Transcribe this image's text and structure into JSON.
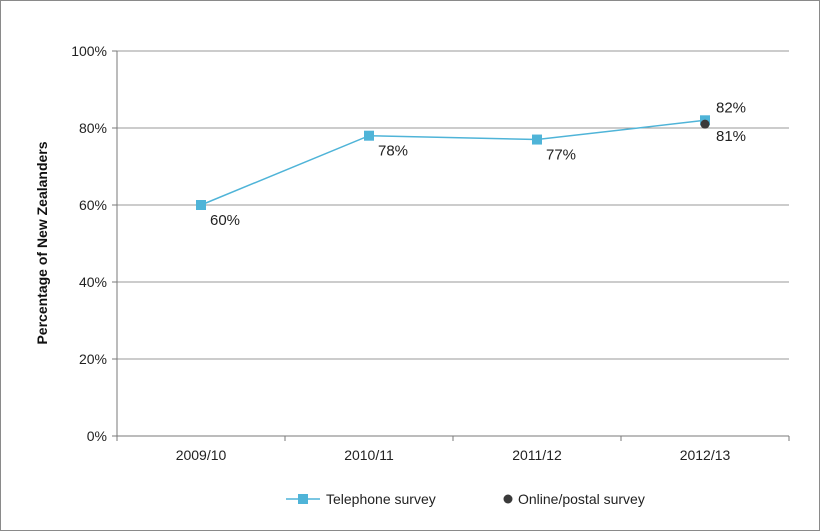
{
  "chart_data": {
    "type": "line",
    "title": "",
    "xlabel": "",
    "ylabel": "Percentage of New Zealanders",
    "categories": [
      "2009/10",
      "2010/11",
      "2011/12",
      "2012/13"
    ],
    "ylim": [
      0,
      100
    ],
    "yticks": [
      "0%",
      "20%",
      "40%",
      "60%",
      "80%",
      "100%"
    ],
    "grid": true,
    "legend_position": "bottom",
    "series": [
      {
        "name": "Telephone survey",
        "values": [
          60,
          78,
          77,
          82
        ],
        "labels": [
          "60%",
          "78%",
          "77%",
          "82%"
        ],
        "color": "#4fb4d8",
        "marker": "square"
      },
      {
        "name": "Online/postal survey",
        "values": [
          null,
          null,
          null,
          81
        ],
        "labels": [
          null,
          null,
          null,
          "81%"
        ],
        "color": "#3a3a3a",
        "marker": "circle"
      }
    ]
  }
}
